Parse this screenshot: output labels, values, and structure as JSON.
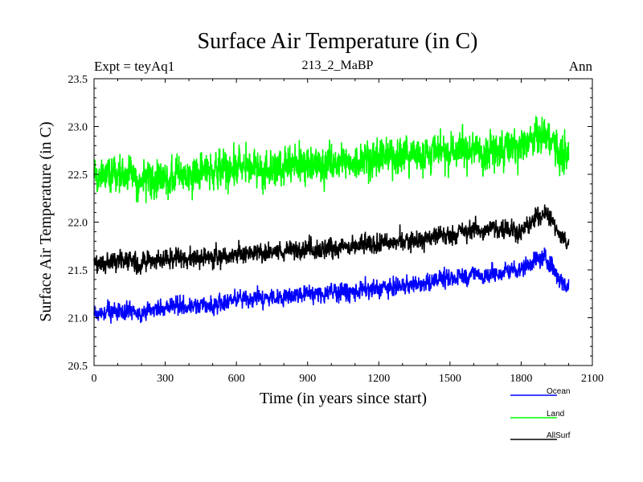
{
  "chart_data": {
    "type": "line",
    "title": "Surface Air Temperature (in C)",
    "subtitle_left": "Expt = teyAq1",
    "subtitle_center": "213_2_MaBP",
    "subtitle_right": "Ann",
    "xlabel": "Time (in years since start)",
    "ylabel": "Surface Air Temperature (in C)",
    "xlim": [
      0,
      2100
    ],
    "ylim": [
      20.5,
      23.5
    ],
    "xticks": [
      0,
      300,
      600,
      900,
      1200,
      1500,
      1800,
      2100
    ],
    "xtick_labels": [
      "0",
      "300",
      "600",
      "900",
      "1200",
      "1500",
      "1800",
      "2100"
    ],
    "yticks": [
      20.5,
      21.0,
      21.5,
      22.0,
      22.5,
      23.0,
      23.5
    ],
    "ytick_labels": [
      "20.5",
      "21.0",
      "21.5",
      "22.0",
      "22.5",
      "23.0",
      "23.5"
    ],
    "legend_position": "bottom-right, below plot",
    "x_range": [
      0,
      2000
    ],
    "series": [
      {
        "name": "Ocean",
        "color": "#0000ff",
        "trend_years": [
          0,
          100,
          200,
          300,
          400,
          500,
          600,
          700,
          800,
          900,
          1000,
          1100,
          1200,
          1300,
          1400,
          1500,
          1600,
          1700,
          1800,
          1900,
          2000
        ],
        "trend_values": [
          21.02,
          21.08,
          21.05,
          21.12,
          21.12,
          21.13,
          21.18,
          21.2,
          21.22,
          21.25,
          21.27,
          21.28,
          21.3,
          21.33,
          21.37,
          21.42,
          21.45,
          21.47,
          21.52,
          21.62,
          21.3
        ],
        "noise": 0.09
      },
      {
        "name": "Land",
        "color": "#00ff00",
        "trend_years": [
          0,
          100,
          200,
          300,
          400,
          500,
          600,
          700,
          800,
          900,
          1000,
          1100,
          1200,
          1300,
          1400,
          1500,
          1600,
          1700,
          1800,
          1900,
          2000
        ],
        "trend_values": [
          22.48,
          22.52,
          22.45,
          22.48,
          22.5,
          22.52,
          22.55,
          22.55,
          22.58,
          22.6,
          22.62,
          22.65,
          22.67,
          22.7,
          22.73,
          22.75,
          22.75,
          22.77,
          22.8,
          22.9,
          22.65
        ],
        "noise": 0.19
      },
      {
        "name": "AllSurf",
        "color": "#000000",
        "trend_years": [
          0,
          100,
          200,
          300,
          400,
          500,
          600,
          700,
          800,
          900,
          1000,
          1100,
          1200,
          1300,
          1400,
          1500,
          1600,
          1700,
          1800,
          1900,
          2000
        ],
        "trend_values": [
          21.55,
          21.6,
          21.58,
          21.62,
          21.63,
          21.63,
          21.65,
          21.68,
          21.7,
          21.72,
          21.73,
          21.75,
          21.77,
          21.8,
          21.83,
          21.87,
          21.92,
          21.95,
          21.9,
          22.1,
          21.75
        ],
        "noise": 0.1
      }
    ]
  }
}
